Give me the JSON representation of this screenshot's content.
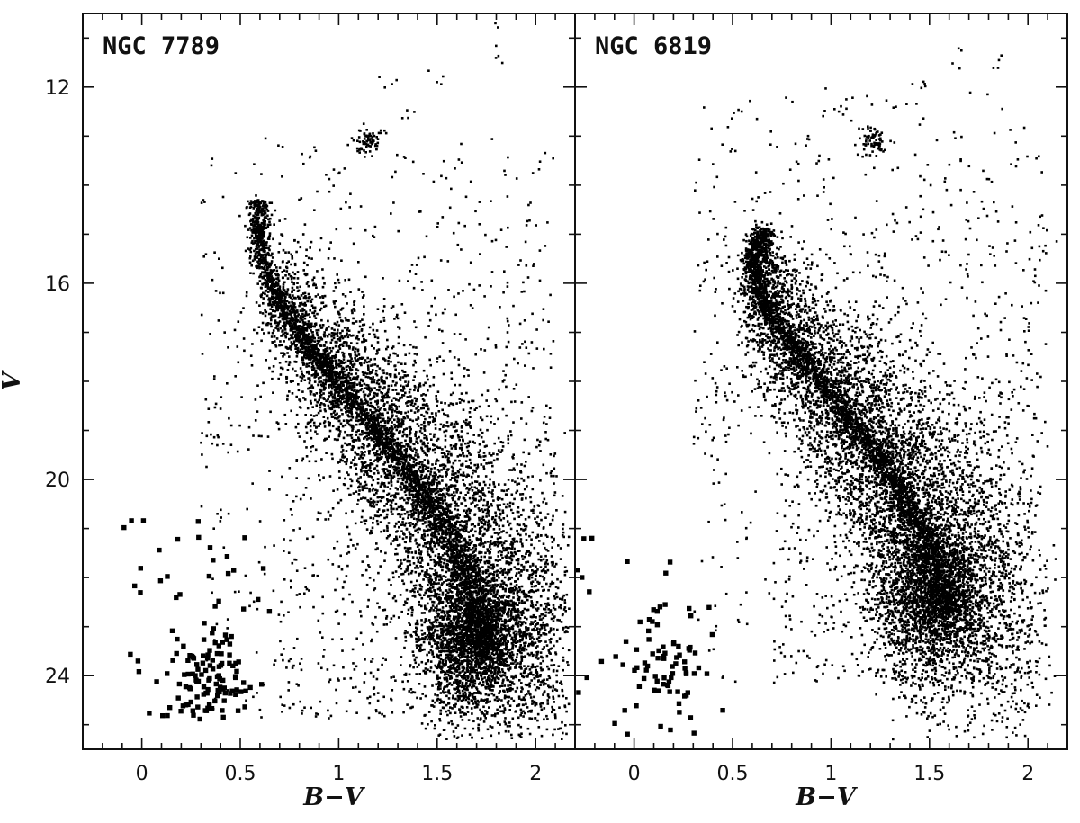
{
  "chart_data": [
    {
      "type": "scatter",
      "title": "NGC 7789",
      "xlabel": "B−V",
      "ylabel": "V",
      "xlim": [
        -0.3,
        2.2
      ],
      "ylim": [
        25.5,
        10.5
      ],
      "y_inverted": true,
      "grid": false,
      "x_ticks": [
        "0",
        "0.5",
        "1",
        "1.5",
        "2"
      ],
      "x_tick_values": [
        0,
        0.5,
        1,
        1.5,
        2
      ],
      "y_ticks": [
        "12",
        "16",
        "20",
        "24"
      ],
      "y_tick_values": [
        12,
        16,
        20,
        24
      ],
      "series": [
        {
          "marker": "dot",
          "features": {
            "main_sequence_ridge": [
              [
                0.58,
                14.7
              ],
              [
                0.62,
                15.6
              ],
              [
                0.7,
                16.4
              ],
              [
                0.85,
                17.3
              ],
              [
                1.0,
                18.0
              ],
              [
                1.15,
                18.8
              ],
              [
                1.3,
                19.6
              ],
              [
                1.45,
                20.4
              ],
              [
                1.58,
                21.3
              ],
              [
                1.68,
                22.2
              ],
              [
                1.72,
                23.0
              ],
              [
                1.74,
                23.6
              ]
            ],
            "turnoff": [
              0.6,
              14.3
            ],
            "red_clump": [
              1.15,
              13.1
            ],
            "giant_branch_points": [
              [
                0.85,
                13.4
              ],
              [
                1.0,
                13.8
              ],
              [
                1.2,
                13.0
              ],
              [
                1.35,
                12.6
              ],
              [
                1.5,
                11.7
              ],
              [
                1.8,
                11.4
              ],
              [
                1.77,
                10.8
              ],
              [
                2.02,
                13.5
              ],
              [
                1.25,
                12.0
              ]
            ],
            "field_spread_v_range": [
              13.0,
              24.9
            ],
            "field_spread_bv_range": [
              0.3,
              2.1
            ]
          }
        },
        {
          "marker": "square",
          "features": {
            "cluster_center": [
              0.35,
              24.2
            ],
            "bv_range": [
              -0.1,
              0.65
            ],
            "v_range": [
              20.8,
              24.9
            ]
          }
        }
      ]
    },
    {
      "type": "scatter",
      "title": "NGC 6819",
      "xlabel": "B−V",
      "ylabel": "V",
      "xlim": [
        -0.3,
        2.2
      ],
      "ylim": [
        25.5,
        10.5
      ],
      "y_inverted": true,
      "grid": false,
      "x_ticks": [
        "0",
        "0.5",
        "1",
        "1.5",
        "2"
      ],
      "x_tick_values": [
        0,
        0.5,
        1,
        1.5,
        2
      ],
      "series": [
        {
          "marker": "dot",
          "features": {
            "main_sequence_ridge": [
              [
                0.65,
                14.9
              ],
              [
                0.6,
                15.5
              ],
              [
                0.62,
                16.1
              ],
              [
                0.72,
                16.8
              ],
              [
                0.85,
                17.5
              ],
              [
                0.98,
                18.2
              ],
              [
                1.12,
                18.9
              ],
              [
                1.25,
                19.6
              ],
              [
                1.38,
                20.4
              ],
              [
                1.48,
                21.2
              ],
              [
                1.55,
                22.0
              ],
              [
                1.58,
                22.8
              ]
            ],
            "turnoff": [
              0.66,
              14.9
            ],
            "red_clump": [
              1.22,
              13.1
            ],
            "giant_branch_points": [
              [
                1.3,
                12.3
              ],
              [
                1.45,
                11.9
              ],
              [
                1.65,
                11.4
              ],
              [
                1.85,
                11.5
              ],
              [
                1.05,
                12.5
              ],
              [
                2.1,
                15.3
              ],
              [
                2.05,
                15.8
              ],
              [
                1.8,
                14.5
              ]
            ],
            "field_spread_v_range": [
              12.0,
              24.2
            ],
            "field_spread_bv_range": [
              0.3,
              2.1
            ]
          }
        },
        {
          "marker": "square",
          "features": {
            "cluster_center": [
              0.15,
              23.8
            ],
            "bv_range": [
              -0.3,
              0.45
            ],
            "v_range": [
              21.0,
              25.2
            ]
          }
        }
      ]
    }
  ],
  "axes": {
    "x_title": "B−V",
    "y_title": "V"
  }
}
